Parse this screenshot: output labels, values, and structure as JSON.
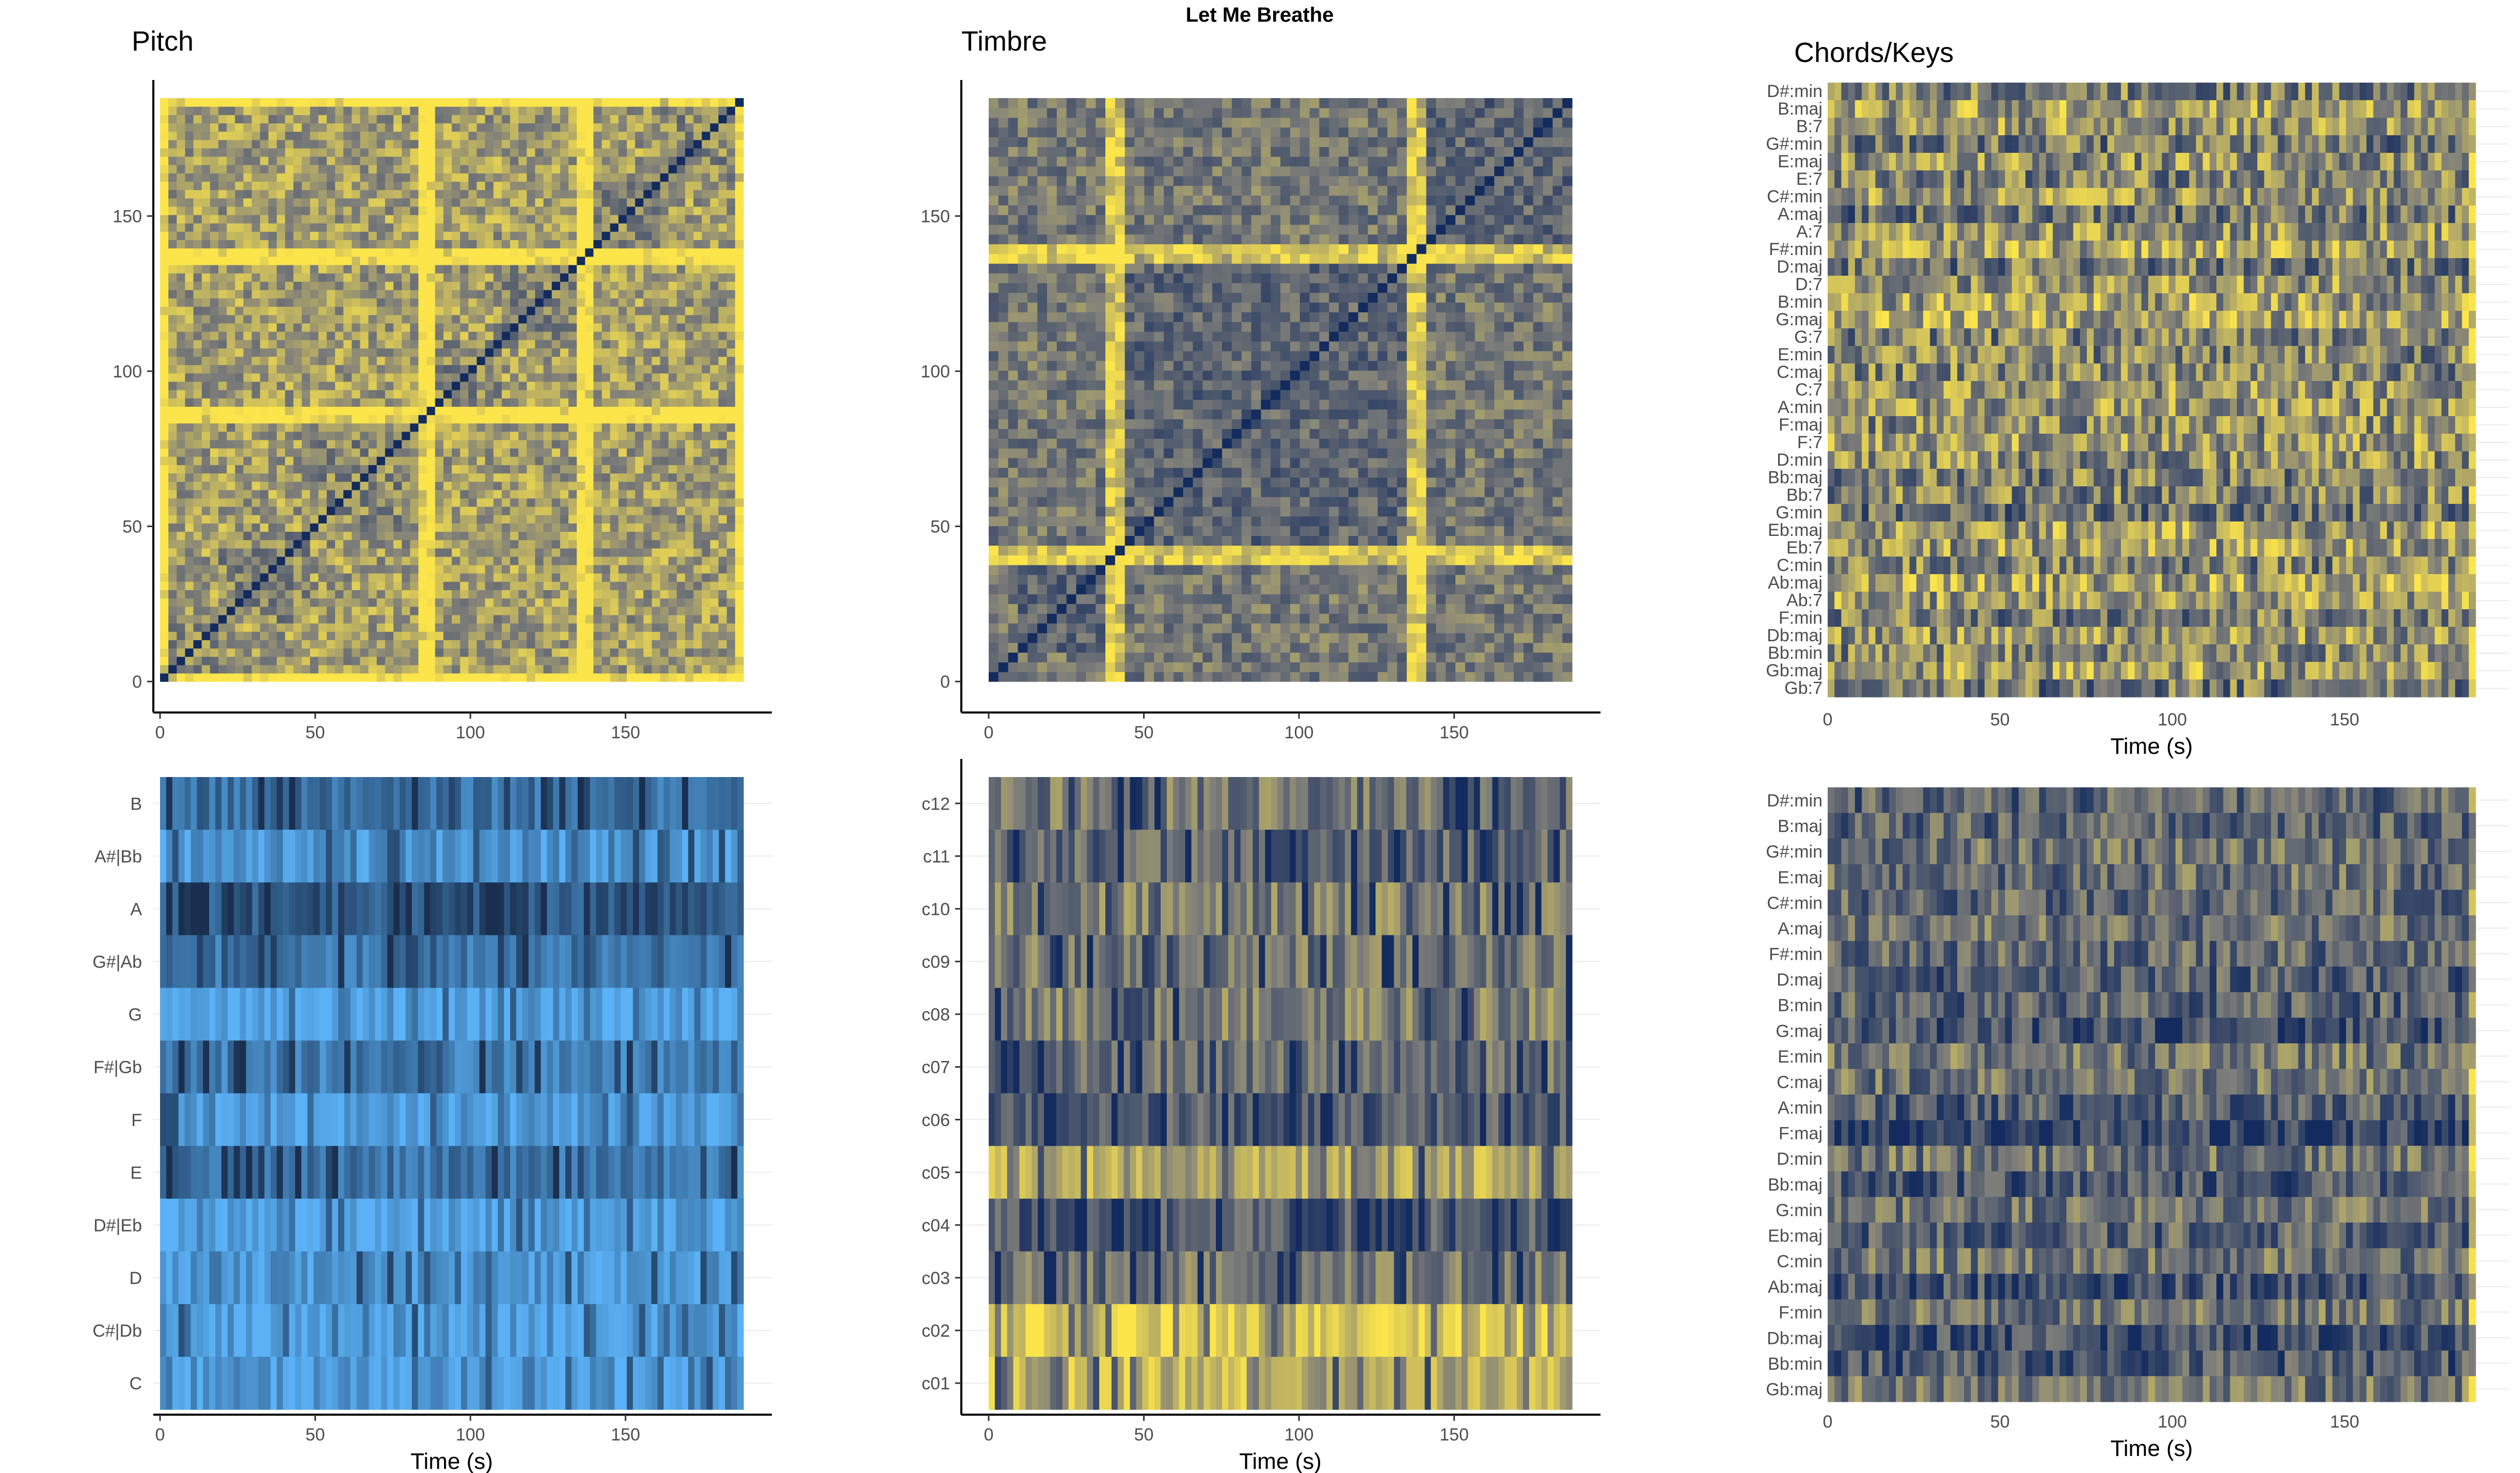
{
  "figure_title": "Let Me Breathe",
  "colors": {
    "low": "#132b5e",
    "mid": "#7f7f7a",
    "high": "#fce54a",
    "chroma_low": "#1a2f4f",
    "chroma_high": "#5ab1f5"
  },
  "chart_data": [
    {
      "id": "pitch-ssm",
      "type": "heatmap",
      "title": "Pitch",
      "xlabel": "",
      "ylabel": "",
      "xlim": [
        0,
        188
      ],
      "ylim": [
        0,
        188
      ],
      "x_ticks": [
        0,
        50,
        100,
        150
      ],
      "y_ticks": [
        0,
        50,
        100,
        150
      ],
      "grid": false,
      "cells": [
        70,
        70
      ],
      "bright_lines": [
        0,
        85,
        138,
        188
      ],
      "block_bounds": [
        0,
        20,
        48,
        85,
        110,
        138,
        160,
        188
      ],
      "base_level": 0.3,
      "contrast": 0.5
    },
    {
      "id": "timbre-ssm",
      "type": "heatmap",
      "title": "Timbre",
      "xlabel": "",
      "ylabel": "",
      "xlim": [
        0,
        188
      ],
      "ylim": [
        0,
        188
      ],
      "x_ticks": [
        0,
        50,
        100,
        150
      ],
      "y_ticks": [
        0,
        50,
        100,
        150
      ],
      "grid": false,
      "cells": [
        60,
        60
      ],
      "bright_lines": [
        40,
        137
      ],
      "block_bounds": [
        0,
        10,
        40,
        137,
        188
      ],
      "base_level": 0.15,
      "contrast": 0.4
    },
    {
      "id": "chords-keys-1",
      "type": "heatmap",
      "title": "Chords/Keys",
      "xlabel": "Time (s)",
      "ylabel": "",
      "xlim": [
        0,
        188
      ],
      "x_ticks": [
        0,
        50,
        100,
        150
      ],
      "categories": [
        "D#:min",
        "B:maj",
        "B:7",
        "G#:min",
        "E:maj",
        "E:7",
        "C#:min",
        "A:maj",
        "A:7",
        "F#:min",
        "D:maj",
        "D:7",
        "B:min",
        "G:maj",
        "G:7",
        "E:min",
        "C:maj",
        "C:7",
        "A:min",
        "F:maj",
        "F:7",
        "D:min",
        "Bb:maj",
        "Bb:7",
        "G:min",
        "Eb:maj",
        "Eb:7",
        "C:min",
        "Ab:maj",
        "Ab:7",
        "F:min",
        "Db:maj",
        "Bb:min",
        "Gb:maj",
        "Gb:7"
      ],
      "grid": true,
      "cells_x": 95,
      "base_level": 0.55,
      "contrast": 0.45
    },
    {
      "id": "chroma",
      "type": "heatmap",
      "title": "",
      "xlabel": "Time (s)",
      "ylabel": "",
      "xlim": [
        0,
        188
      ],
      "x_ticks": [
        0,
        50,
        100,
        150
      ],
      "categories": [
        "B",
        "A#|Bb",
        "A",
        "G#|Ab",
        "G",
        "F#|Gb",
        "F",
        "E",
        "D#|Eb",
        "D",
        "C#|Db",
        "C"
      ],
      "grid": true,
      "cells_x": 95,
      "row_levels": [
        0.5,
        0.8,
        0.3,
        0.55,
        0.95,
        0.6,
        0.85,
        0.55,
        0.9,
        0.8,
        0.85,
        0.85
      ]
    },
    {
      "id": "timbre-coefficients",
      "type": "heatmap",
      "title": "",
      "xlabel": "Time (s)",
      "ylabel": "",
      "xlim": [
        0,
        188
      ],
      "x_ticks": [
        0,
        50,
        100,
        150
      ],
      "categories": [
        "c12",
        "c11",
        "c10",
        "c09",
        "c08",
        "c07",
        "c06",
        "c05",
        "c04",
        "c03",
        "c02",
        "c01"
      ],
      "grid": true,
      "cells_x": 95,
      "row_levels": [
        0.45,
        0.35,
        0.5,
        0.45,
        0.5,
        0.4,
        0.3,
        0.7,
        0.3,
        0.45,
        0.9,
        0.75
      ]
    },
    {
      "id": "chords-keys-2",
      "type": "heatmap",
      "title": "",
      "xlabel": "Time (s)",
      "ylabel": "",
      "xlim": [
        0,
        188
      ],
      "x_ticks": [
        0,
        50,
        100,
        150
      ],
      "categories": [
        "D#:min",
        "B:maj",
        "G#:min",
        "E:maj",
        "C#:min",
        "A:maj",
        "F#:min",
        "D:maj",
        "B:min",
        "G:maj",
        "E:min",
        "C:maj",
        "A:min",
        "F:maj",
        "D:min",
        "Bb:maj",
        "G:min",
        "Eb:maj",
        "C:min",
        "Ab:maj",
        "F:min",
        "Db:maj",
        "Bb:min",
        "Gb:maj"
      ],
      "grid": true,
      "cells_x": 95,
      "base_level": 0.3,
      "contrast": 0.35
    }
  ]
}
